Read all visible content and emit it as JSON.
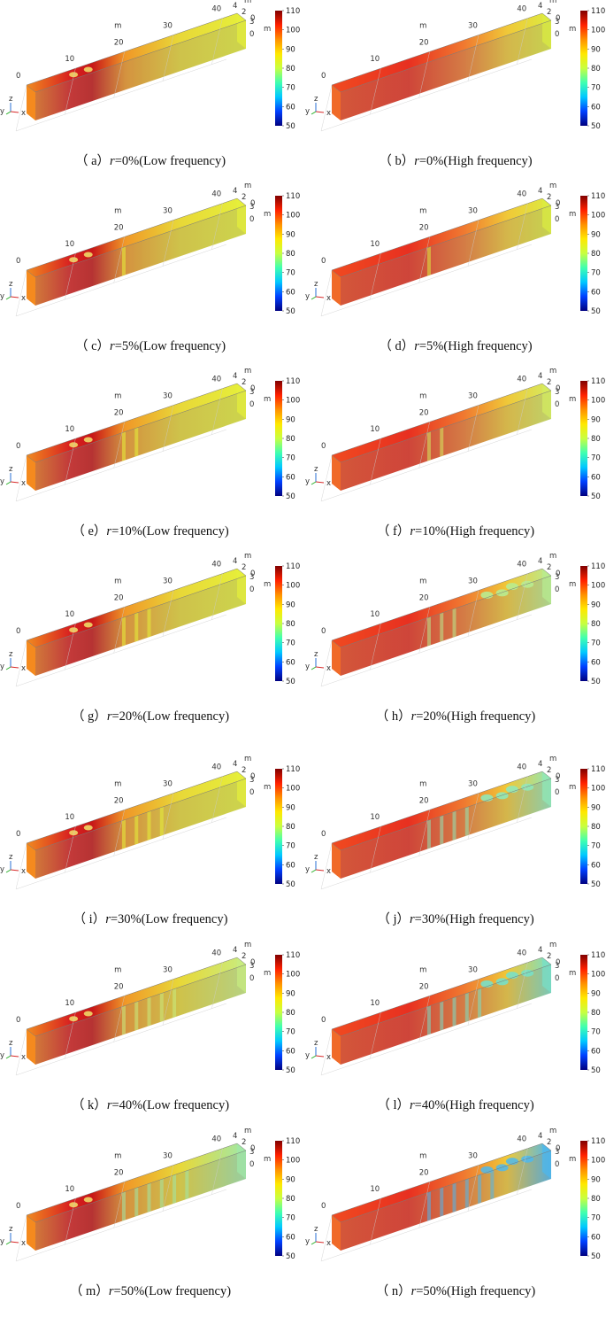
{
  "axes": {
    "len_unit": "m",
    "len_ticks": [
      "0",
      "10",
      "20",
      "30",
      "40"
    ],
    "w_ticks": [
      "4",
      "2",
      "0"
    ],
    "h_ticks": [
      "3",
      "0"
    ],
    "tri": {
      "x": "x",
      "y": "y",
      "z": "z"
    }
  },
  "colorbar": {
    "ticks": [
      "110",
      "100",
      "90",
      "80",
      "70",
      "60",
      "50"
    ],
    "range": [
      50,
      110
    ],
    "colors": [
      "#000080",
      "#0040ff",
      "#00c8ff",
      "#40ffb0",
      "#c8ff40",
      "#ffe800",
      "#ff9000",
      "#ff2000",
      "#800000"
    ]
  },
  "panels": [
    {
      "letter": "a",
      "r": "0%",
      "freq": "(Low frequency)",
      "fringe": "#e6f03a",
      "alpha": 0.95
    },
    {
      "letter": "b",
      "r": "0%",
      "freq": "(High frequency)",
      "fringe": "#dcec40",
      "alpha": 0.9
    },
    {
      "letter": "c",
      "r": "5%",
      "freq": "(Low frequency)",
      "fringe": "#e6f03a",
      "alpha": 0.95
    },
    {
      "letter": "d",
      "r": "5%",
      "freq": "(High frequency)",
      "fringe": "#dcec40",
      "alpha": 0.9
    },
    {
      "letter": "e",
      "r": "10%",
      "freq": "(Low frequency)",
      "fringe": "#e6f03a",
      "alpha": 0.95
    },
    {
      "letter": "f",
      "r": "10%",
      "freq": "(High frequency)",
      "fringe": "#d4ec60",
      "alpha": 0.9
    },
    {
      "letter": "g",
      "r": "20%",
      "freq": "(Low frequency)",
      "fringe": "#e6f03a",
      "alpha": 0.95
    },
    {
      "letter": "h",
      "r": "20%",
      "freq": "(High frequency)",
      "fringe": "#b8ec90",
      "alpha": 0.9
    },
    {
      "letter": "i",
      "r": "30%",
      "freq": "(Low frequency)",
      "fringe": "#e6f03a",
      "alpha": 0.95
    },
    {
      "letter": "j",
      "r": "30%",
      "freq": "(High frequency)",
      "fringe": "#90e8b8",
      "alpha": 0.9
    },
    {
      "letter": "k",
      "r": "40%",
      "freq": "(Low frequency)",
      "fringe": "#c8ec80",
      "alpha": 0.9
    },
    {
      "letter": "l",
      "r": "40%",
      "freq": "(High frequency)",
      "fringe": "#78e0c8",
      "alpha": 0.9
    },
    {
      "letter": "m",
      "r": "50%",
      "freq": "(Low frequency)",
      "fringe": "#a0e8a8",
      "alpha": 0.9
    },
    {
      "letter": "n",
      "r": "50%",
      "freq": "(High frequency)",
      "fringe": "#4cb8f0",
      "alpha": 0.85
    }
  ]
}
